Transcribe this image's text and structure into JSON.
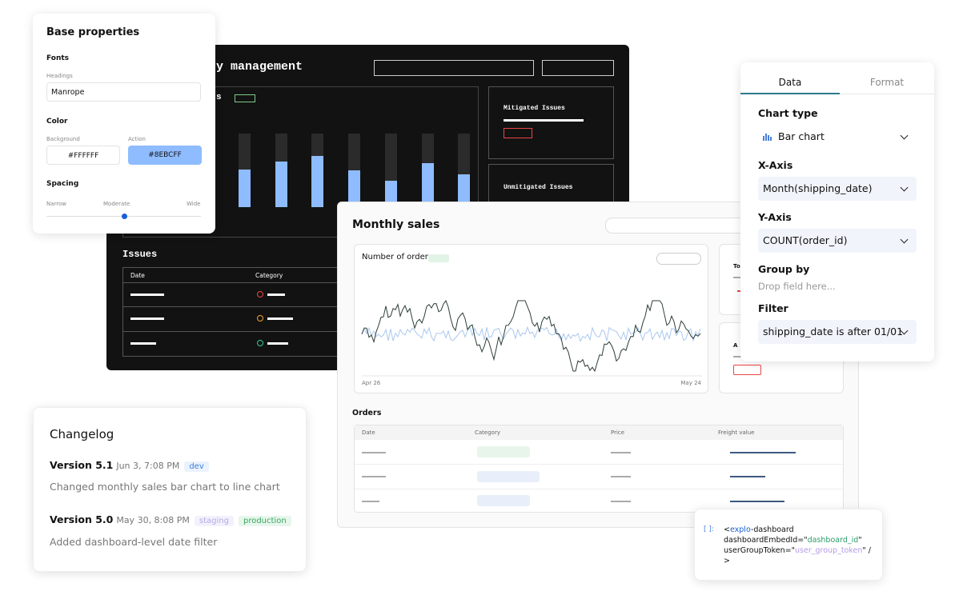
{
  "base_properties": {
    "title": "Base properties",
    "fonts_heading": "Fonts",
    "headings_label": "Headings",
    "font_value": "Manrope",
    "color_heading": "Color",
    "background_label": "Background",
    "action_label": "Action",
    "background_value": "#FFFFFF",
    "action_value": "#8EBCFF",
    "spacing_heading": "Spacing",
    "spacing_labels": [
      "Narrow",
      "Moderate",
      "Wide"
    ]
  },
  "dark_dashboard": {
    "title": "y management",
    "chart_title_fragment": "s",
    "mitigated": "Mitigated Issues",
    "unmitigated": "Unmitigated Issues",
    "issues_title": "Issues",
    "columns": [
      "Date",
      "Category"
    ]
  },
  "monthly_sales": {
    "title": "Monthly sales",
    "chart_title": "Number of orders",
    "x_start": "Apr 26",
    "x_end": "May 24",
    "side_fragments": [
      "To",
      "A"
    ],
    "orders_title": "Orders",
    "columns": [
      "Date",
      "Category",
      "Price",
      "Freight value"
    ]
  },
  "config_panel": {
    "tabs": [
      "Data",
      "Format"
    ],
    "chart_type_label": "Chart type",
    "chart_type": "Bar chart",
    "x_axis_label": "X-Axis",
    "x_axis": "Month(shipping_date)",
    "y_axis_label": "Y-Axis",
    "y_axis": "COUNT(order_id)",
    "group_by_label": "Group by",
    "group_by_placeholder": "Drop field here...",
    "filter_label": "Filter",
    "filter": "shipping_date is after 01/01"
  },
  "changelog": {
    "title": "Changelog",
    "entries": [
      {
        "version": "Version 5.1",
        "time": "Jun 3, 7:08 PM",
        "tags": [
          "dev"
        ],
        "description": "Changed monthly sales bar chart to line chart"
      },
      {
        "version": "Version 5.0",
        "time": "May 30, 8:08 PM",
        "tags": [
          "staging",
          "production"
        ],
        "description": "Added dashboard-level date filter"
      }
    ]
  },
  "code": {
    "prompt": "[ ]:",
    "lines": [
      [
        "<",
        "explo",
        "-dashboard"
      ],
      [
        "dashboardEmbedId=\"",
        "dashboard_id",
        "\""
      ],
      [
        "userGroupToken=\"",
        "user_group_token",
        "\" /"
      ],
      [
        ">"
      ]
    ]
  }
}
